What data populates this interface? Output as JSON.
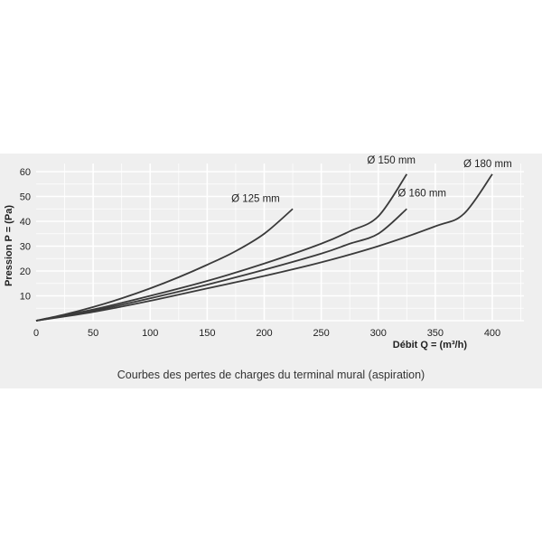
{
  "chart_data": {
    "type": "line",
    "ylabel": "Pression P = (Pa)",
    "xlabel": "Débit Q = (m³/h)",
    "xlim": [
      0,
      450
    ],
    "ylim": [
      0,
      65
    ],
    "x_ticks": [
      0,
      50,
      100,
      150,
      200,
      250,
      300,
      350,
      400
    ],
    "y_ticks": [
      10,
      20,
      30,
      40,
      50,
      60
    ],
    "grid": true,
    "series": [
      {
        "name": "Ø 125 mm",
        "x": [
          0,
          25,
          50,
          75,
          100,
          125,
          150,
          175,
          200,
          225
        ],
        "y": [
          0,
          2.5,
          5.5,
          9,
          13,
          17.5,
          22.5,
          28,
          35,
          45
        ]
      },
      {
        "name": "Ø 150 mm",
        "x": [
          0,
          50,
          100,
          150,
          200,
          250,
          275,
          300,
          325
        ],
        "y": [
          0,
          4.5,
          10,
          16,
          23,
          31,
          36,
          42,
          59
        ]
      },
      {
        "name": "Ø 160 mm",
        "x": [
          0,
          50,
          100,
          150,
          200,
          250,
          275,
          300,
          325
        ],
        "y": [
          0,
          4,
          9,
          14.5,
          20.5,
          27,
          31,
          35,
          45
        ]
      },
      {
        "name": "Ø 180 mm",
        "x": [
          0,
          50,
          100,
          150,
          200,
          250,
          300,
          350,
          375,
          400
        ],
        "y": [
          0,
          3.5,
          8,
          13,
          18,
          23.5,
          30,
          38,
          43,
          59
        ]
      }
    ]
  },
  "caption": "Courbes des pertes de charges du terminal mural (aspiration)",
  "colors": {
    "background": "#efefef",
    "grid": "#ffffff",
    "line": "#3a3a3a",
    "text": "#222222"
  }
}
